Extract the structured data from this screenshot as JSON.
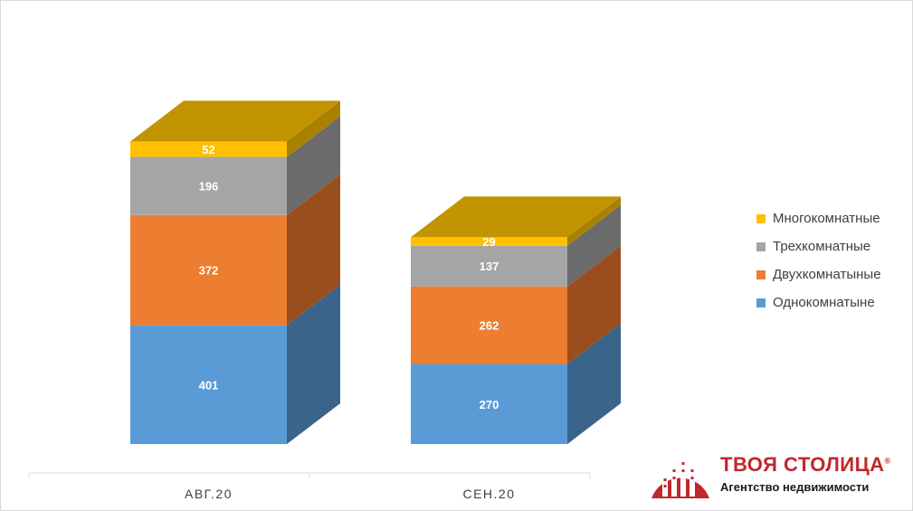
{
  "chart_data": {
    "type": "bar",
    "stacked": true,
    "three_d": true,
    "categories": [
      "АВГ.20",
      "СЕН.20"
    ],
    "series": [
      {
        "name": "Однокомнатыне",
        "values": [
          401,
          270
        ],
        "color": "#5b9bd5",
        "side": "#3a6489",
        "top": "#3a6489"
      },
      {
        "name": "Двухкомнатыные",
        "values": [
          372,
          262
        ],
        "color": "#ed7d31",
        "side": "#9b4e1d",
        "top": "#9b4e1d"
      },
      {
        "name": "Трехкомнатные",
        "values": [
          196,
          137
        ],
        "color": "#a5a5a5",
        "side": "#6b6b6b",
        "top": "#6b6b6b"
      },
      {
        "name": "Многокомнатные",
        "values": [
          52,
          29
        ],
        "color": "#ffc000",
        "side": "#a88100",
        "top": "#c29400"
      }
    ],
    "legend_position": "right",
    "grid": false
  },
  "legend": [
    {
      "label": "Многокомнатные",
      "color": "#ffc000"
    },
    {
      "label": "Трехкомнатные",
      "color": "#a5a5a5"
    },
    {
      "label": "Двухкомнатыные",
      "color": "#ed7d31"
    },
    {
      "label": "Однокомнатыне",
      "color": "#5b9bd5"
    }
  ],
  "brand": {
    "name": "ТВОЯ СТОЛИЦА",
    "registered": "®",
    "tagline": "Агентство недвижимости",
    "color": "#c0282d"
  }
}
